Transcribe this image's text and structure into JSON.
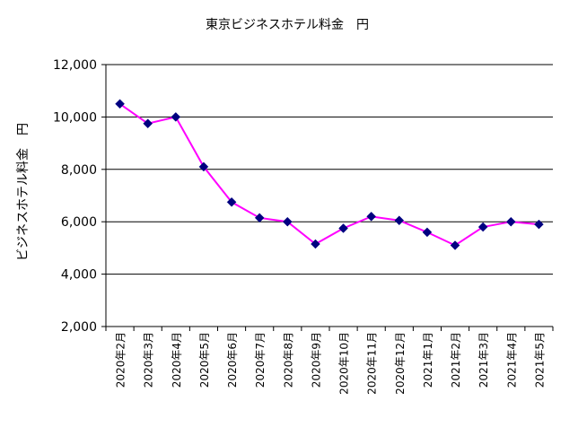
{
  "chart_data": {
    "type": "line",
    "title": "東京ビジネスホテル料金　円",
    "ylabel": "ビジネスホテル料金　円",
    "xlabel": "",
    "categories": [
      "2020年2月",
      "2020年3月",
      "2020年4月",
      "2020年5月",
      "2020年6月",
      "2020年7月",
      "2020年8月",
      "2020年9月",
      "2020年10月",
      "2020年11月",
      "2020年12月",
      "2021年1月",
      "2021年2月",
      "2021年3月",
      "2021年4月",
      "2021年5月"
    ],
    "values": [
      10500,
      9750,
      10000,
      8100,
      6750,
      6150,
      6000,
      5150,
      5750,
      6200,
      6050,
      5600,
      5100,
      5800,
      6000,
      5900
    ],
    "ylim": [
      2000,
      12000
    ],
    "yticks": [
      2000,
      4000,
      6000,
      8000,
      10000,
      12000
    ],
    "ytick_labels": [
      "2,000",
      "4,000",
      "6,000",
      "8,000",
      "10,000",
      "12,000"
    ],
    "grid": true,
    "legend": "none",
    "colors": {
      "line": "#ff00ff",
      "marker": "#000080",
      "grid": "#000000"
    }
  }
}
